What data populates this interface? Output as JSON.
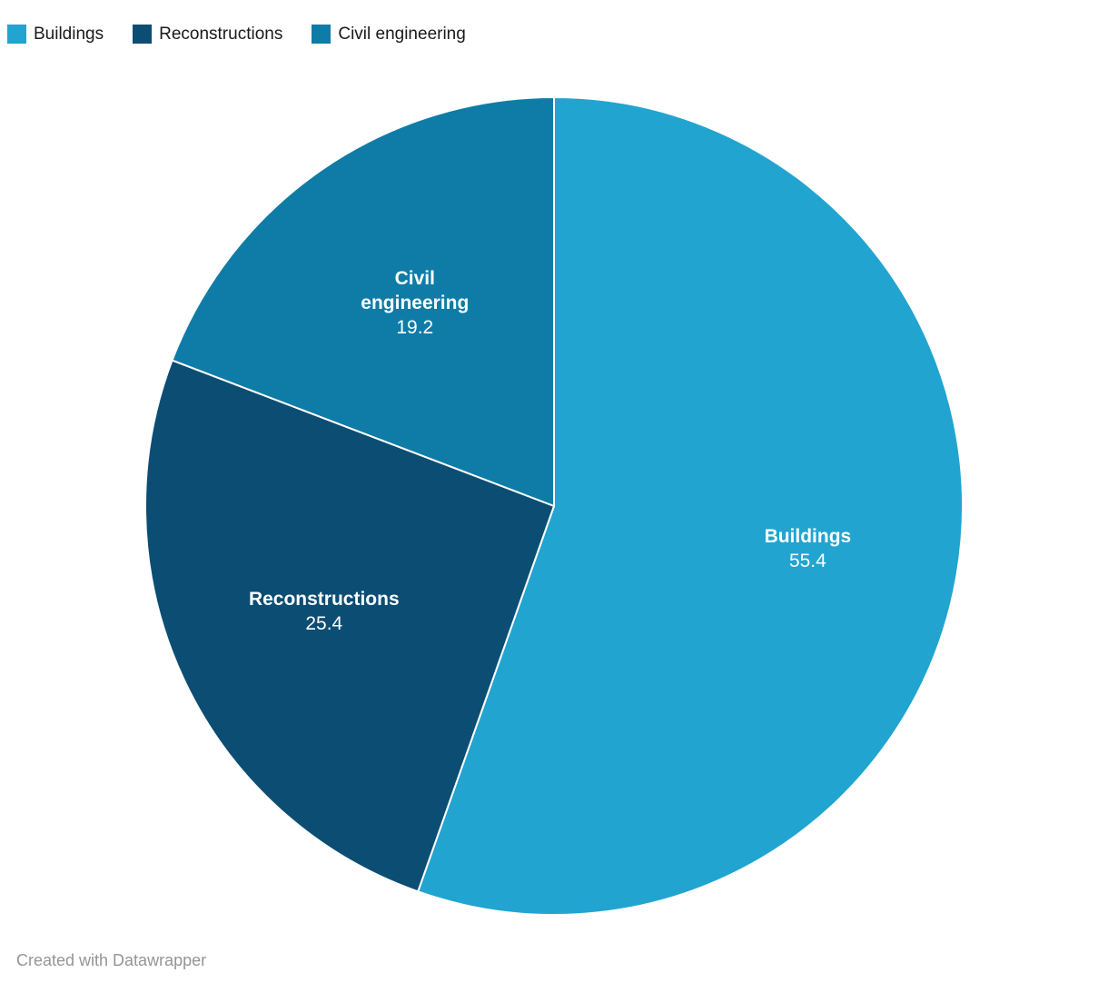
{
  "legend": {
    "items": [
      {
        "label": "Buildings",
        "color": "#21a4d0"
      },
      {
        "label": "Reconstructions",
        "color": "#0c4d73"
      },
      {
        "label": "Civil engineering",
        "color": "#0e7ca6"
      }
    ]
  },
  "footer": {
    "credit": "Created with Datawrapper"
  },
  "chart_data": {
    "type": "pie",
    "title": "",
    "categories": [
      "Buildings",
      "Reconstructions",
      "Civil engineering"
    ],
    "values": [
      55.4,
      25.4,
      19.2
    ],
    "slices": [
      {
        "label": "Buildings",
        "value": 55.4,
        "color": "#21a4d0",
        "label_lines": [
          "Buildings"
        ],
        "value_label": "55.4",
        "label_radius": 0.63
      },
      {
        "label": "Reconstructions",
        "value": 25.4,
        "color": "#0c4d73",
        "label_lines": [
          "Reconstructions"
        ],
        "value_label": "25.4",
        "label_radius": 0.62
      },
      {
        "label": "Civil engineering",
        "value": 19.2,
        "color": "#0e7ca6",
        "label_lines": [
          "Civil",
          "engineering"
        ],
        "value_label": "19.2",
        "label_radius": 0.6
      }
    ],
    "start_angle_deg": 0,
    "direction": "clockwise",
    "legend_position": "top-left",
    "value_labels_shown": true,
    "slice_separator_color": "#ffffff",
    "label_text_color": "#ffffff"
  }
}
